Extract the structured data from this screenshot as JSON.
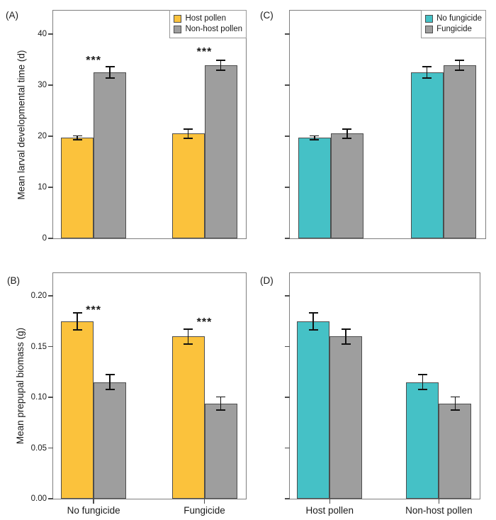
{
  "figure": {
    "background": "#ffffff",
    "description": "Four-panel grouped bar chart with error bars and significance stars"
  },
  "style": {
    "host_pollen_color": "#FBC23C",
    "non_host_pollen_color": "#9E9E9E",
    "no_fungicide_color": "#45C1C6",
    "fungicide_color": "#9E9E9E",
    "bar_border_color": "#4d4d4d",
    "panel_border_color": "#7f7f7f",
    "error_bar_color": "#111111",
    "text_color": "#1a1a1a"
  },
  "chart_data": [
    {
      "id": "A",
      "panel_label": "(A)",
      "type": "bar",
      "ylabel": "Mean larval developmental time (d)",
      "xlabel": "",
      "ylim": [
        0,
        44.6
      ],
      "yticks": [
        0,
        10,
        20,
        30,
        40
      ],
      "ytick_labels": [
        "0",
        "10",
        "20",
        "30",
        "40"
      ],
      "show_ytick_labels": true,
      "categories": [
        "No fungicide",
        "Fungicide"
      ],
      "show_xtick_labels": false,
      "grid": false,
      "legend": {
        "position": "top-right",
        "entries": [
          {
            "label": "Host pollen",
            "color": "#FBC23C"
          },
          {
            "label": "Non-host pollen",
            "color": "#9E9E9E"
          }
        ]
      },
      "series": [
        {
          "name": "Host pollen",
          "color": "#FBC23C",
          "values": [
            19.7,
            20.5
          ],
          "errors": [
            0.5,
            1.0
          ]
        },
        {
          "name": "Non-host pollen",
          "color": "#9E9E9E",
          "values": [
            32.5,
            33.9
          ],
          "errors": [
            1.2,
            1.1
          ]
        }
      ],
      "significance": [
        {
          "group": 0,
          "text": "***",
          "y": 34.1
        },
        {
          "group": 1,
          "text": "***",
          "y": 35.7
        }
      ]
    },
    {
      "id": "B",
      "panel_label": "(B)",
      "type": "bar",
      "ylabel": "Mean prepupal biomass (g)",
      "xlabel": "",
      "ylim": [
        0,
        0.2225
      ],
      "yticks": [
        0,
        0.05,
        0.1,
        0.15,
        0.2
      ],
      "ytick_labels": [
        "0.00",
        "0.05",
        "0.10",
        "0.15",
        "0.20"
      ],
      "show_ytick_labels": true,
      "categories": [
        "No fungicide",
        "Fungicide"
      ],
      "show_xtick_labels": true,
      "grid": false,
      "legend": null,
      "series": [
        {
          "name": "Host pollen",
          "color": "#FBC23C",
          "values": [
            0.175,
            0.16
          ],
          "errors": [
            0.009,
            0.008
          ]
        },
        {
          "name": "Non-host pollen",
          "color": "#9E9E9E",
          "values": [
            0.115,
            0.094
          ],
          "errors": [
            0.008,
            0.007
          ]
        }
      ],
      "significance": [
        {
          "group": 0,
          "text": "***",
          "y": 0.182
        },
        {
          "group": 1,
          "text": "***",
          "y": 0.17
        }
      ]
    },
    {
      "id": "C",
      "panel_label": "(C)",
      "type": "bar",
      "ylabel": "",
      "xlabel": "",
      "ylim": [
        0,
        44.6
      ],
      "yticks": [
        0,
        10,
        20,
        30,
        40
      ],
      "ytick_labels": [
        "",
        "",
        "",
        "",
        ""
      ],
      "show_ytick_labels": false,
      "categories": [
        "Host pollen",
        "Non-host pollen"
      ],
      "show_xtick_labels": false,
      "grid": false,
      "legend": {
        "position": "top-right",
        "entries": [
          {
            "label": "No fungicide",
            "color": "#45C1C6"
          },
          {
            "label": "Fungicide",
            "color": "#9E9E9E"
          }
        ]
      },
      "series": [
        {
          "name": "No fungicide",
          "color": "#45C1C6",
          "values": [
            19.7,
            32.5
          ],
          "errors": [
            0.5,
            1.2
          ]
        },
        {
          "name": "Fungicide",
          "color": "#9E9E9E",
          "values": [
            20.5,
            33.9
          ],
          "errors": [
            1.0,
            1.1
          ]
        }
      ],
      "significance": []
    },
    {
      "id": "D",
      "panel_label": "(D)",
      "type": "bar",
      "ylabel": "",
      "xlabel": "",
      "ylim": [
        0,
        0.2225
      ],
      "yticks": [
        0,
        0.05,
        0.1,
        0.15,
        0.2
      ],
      "ytick_labels": [
        "",
        "",
        "",
        "",
        ""
      ],
      "show_ytick_labels": false,
      "categories": [
        "Host pollen",
        "Non-host pollen"
      ],
      "show_xtick_labels": true,
      "grid": false,
      "legend": null,
      "series": [
        {
          "name": "No fungicide",
          "color": "#45C1C6",
          "values": [
            0.175,
            0.115
          ],
          "errors": [
            0.009,
            0.008
          ]
        },
        {
          "name": "Fungicide",
          "color": "#9E9E9E",
          "values": [
            0.16,
            0.094
          ],
          "errors": [
            0.008,
            0.007
          ]
        }
      ],
      "significance": []
    }
  ]
}
